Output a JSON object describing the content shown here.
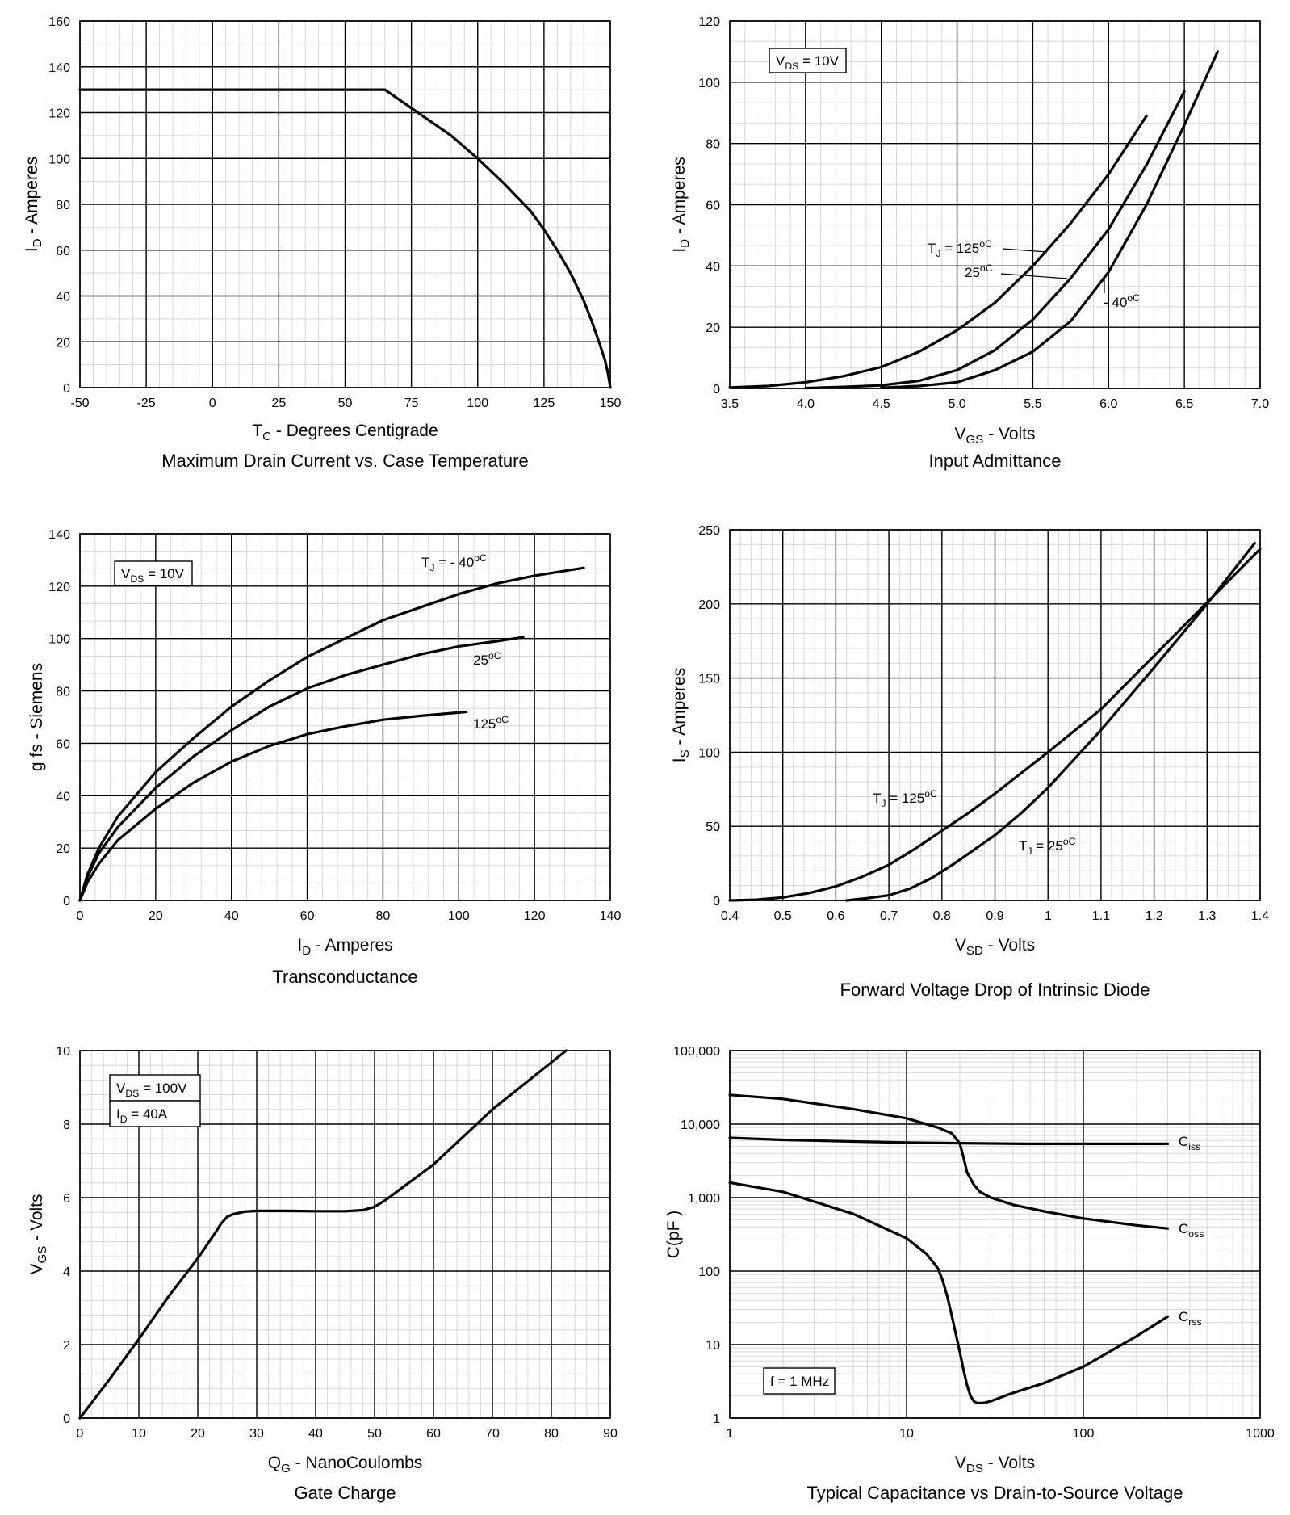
{
  "chart_data": [
    {
      "type": "line",
      "title": "Maximum Drain Current vs. Case Temperature",
      "xlabel": "T_C - Degrees Centigrade",
      "ylabel": "I_D - Amperes",
      "xlim": [
        -50,
        150
      ],
      "ylim": [
        0,
        160
      ],
      "x_ticks": [
        -50,
        -25,
        0,
        25,
        50,
        75,
        100,
        125,
        150
      ],
      "y_ticks": [
        0,
        20,
        40,
        60,
        80,
        100,
        120,
        140,
        160
      ],
      "series": [
        {
          "name": "I_D max",
          "label": "",
          "x": [
            -50,
            65,
            80,
            90,
            100,
            110,
            120,
            125,
            130,
            135,
            140,
            143,
            146,
            148,
            149,
            149.6,
            150
          ],
          "y": [
            130,
            130,
            118,
            110,
            100,
            89,
            77,
            69,
            60,
            50,
            38,
            29,
            19,
            12,
            7,
            3,
            0
          ]
        }
      ],
      "annotations": []
    },
    {
      "type": "line",
      "title": "Input Admittance",
      "xlabel": "V_GS - Volts",
      "ylabel": "I_D - Amperes",
      "xlim": [
        3.5,
        7.0
      ],
      "ylim": [
        0,
        120
      ],
      "x_ticks": [
        "3.5",
        "4.0",
        "4.5",
        "5.0",
        "5.5",
        "6.0",
        "6.5",
        "7.0"
      ],
      "y_ticks": [
        0,
        20,
        40,
        60,
        80,
        100,
        120
      ],
      "series": [
        {
          "name": "TJ=125C",
          "label": "T_J = 125^oC",
          "x": [
            3.5,
            3.75,
            4.0,
            4.25,
            4.5,
            4.75,
            5.0,
            5.25,
            5.5,
            5.75,
            6.0,
            6.25
          ],
          "y": [
            0.3,
            0.8,
            2,
            4,
            7,
            12,
            19,
            28,
            40,
            54,
            70,
            89
          ]
        },
        {
          "name": "TJ=25C",
          "label": "25^oC",
          "x": [
            4.0,
            4.25,
            4.5,
            4.75,
            5.0,
            5.25,
            5.5,
            5.75,
            6.0,
            6.25,
            6.5
          ],
          "y": [
            0.1,
            0.5,
            1,
            2.5,
            6,
            12.5,
            22.5,
            36,
            52,
            73,
            97
          ]
        },
        {
          "name": "TJ=-40C",
          "label": "- 40^oC",
          "x": [
            4.5,
            4.75,
            5.0,
            5.25,
            5.5,
            5.75,
            6.0,
            6.25,
            6.5,
            6.72
          ],
          "y": [
            0.2,
            0.8,
            2,
            6,
            12,
            22,
            38,
            60,
            86,
            110
          ]
        }
      ],
      "annotations": [
        "V_DS = 10V"
      ]
    },
    {
      "type": "line",
      "title": "Transconductance",
      "xlabel": "I_D - Amperes",
      "ylabel": "g fs - Siemens",
      "xlim": [
        0,
        140
      ],
      "ylim": [
        0,
        140
      ],
      "x_ticks": [
        0,
        20,
        40,
        60,
        80,
        100,
        120,
        140
      ],
      "y_ticks": [
        0,
        20,
        40,
        60,
        80,
        100,
        120,
        140
      ],
      "series": [
        {
          "name": "TJ=-40C",
          "label": "T_J = - 40^oC",
          "x": [
            0,
            2,
            5,
            10,
            20,
            30,
            40,
            50,
            60,
            70,
            80,
            90,
            100,
            110,
            120,
            133
          ],
          "y": [
            0,
            10,
            20,
            32,
            49,
            62,
            74,
            84,
            93,
            100,
            107,
            112,
            117,
            121,
            124,
            127
          ]
        },
        {
          "name": "TJ=25C",
          "label": "25^oC",
          "x": [
            0,
            2,
            5,
            10,
            20,
            30,
            40,
            50,
            60,
            70,
            80,
            90,
            100,
            110,
            117
          ],
          "y": [
            0,
            9,
            18,
            28,
            43,
            55,
            65,
            74,
            81,
            86,
            90,
            94,
            97,
            99,
            100.5
          ]
        },
        {
          "name": "TJ=125C",
          "label": "125^oC",
          "x": [
            0,
            2,
            5,
            10,
            20,
            30,
            40,
            50,
            60,
            70,
            80,
            90,
            102
          ],
          "y": [
            0,
            7,
            14,
            23,
            35,
            45,
            53,
            59,
            63.5,
            66.5,
            69,
            70.5,
            72
          ]
        }
      ],
      "annotations": [
        "V_DS = 10V"
      ]
    },
    {
      "type": "line",
      "title": "Forward Voltage Drop of Intrinsic Diode",
      "xlabel": "V_SD - Volts",
      "ylabel": "I_S - Amperes",
      "xlim": [
        0.4,
        1.4
      ],
      "ylim": [
        0,
        250
      ],
      "x_ticks": [
        "0.4",
        "0.5",
        "0.6",
        "0.7",
        "0.8",
        "0.9",
        "1",
        "1.1",
        "1.2",
        "1.3",
        "1.4"
      ],
      "y_ticks": [
        0,
        50,
        100,
        150,
        200,
        250
      ],
      "series": [
        {
          "name": "TJ=125C",
          "label": "T_J = 125^oC",
          "x": [
            0.4,
            0.45,
            0.5,
            0.55,
            0.6,
            0.65,
            0.7,
            0.75,
            0.8,
            0.85,
            0.9,
            0.95,
            1.0,
            1.1,
            1.2,
            1.3,
            1.4
          ],
          "y": [
            0,
            0.5,
            2,
            5,
            9.5,
            16,
            24,
            35,
            47,
            59,
            72,
            86,
            100,
            129,
            165,
            201,
            237
          ]
        },
        {
          "name": "TJ=25C",
          "label": "T_J = 25^oC",
          "x": [
            0.62,
            0.66,
            0.7,
            0.74,
            0.78,
            0.82,
            0.86,
            0.9,
            0.95,
            1.0,
            1.1,
            1.2,
            1.3,
            1.39
          ],
          "y": [
            0,
            1.5,
            3.5,
            8,
            15,
            24,
            34,
            44,
            59,
            76,
            115,
            157,
            200,
            241
          ]
        }
      ],
      "annotations": []
    },
    {
      "type": "line",
      "title": "Gate Charge",
      "xlabel": "Q_G - NanoCoulombs",
      "ylabel": "V_GS - Volts",
      "xlim": [
        0,
        90
      ],
      "ylim": [
        0,
        10
      ],
      "x_ticks": [
        0,
        10,
        20,
        30,
        40,
        50,
        60,
        70,
        80,
        90
      ],
      "y_ticks": [
        0,
        2,
        4,
        6,
        8,
        10
      ],
      "series": [
        {
          "name": "V_GS",
          "label": "",
          "x": [
            0,
            5,
            10,
            15,
            20,
            23,
            24,
            25,
            26,
            28,
            30,
            35,
            40,
            45,
            48,
            50,
            52,
            60,
            70,
            82.5
          ],
          "y": [
            0,
            1.05,
            2.15,
            3.3,
            4.35,
            5.05,
            5.3,
            5.48,
            5.55,
            5.62,
            5.64,
            5.64,
            5.63,
            5.63,
            5.66,
            5.75,
            5.95,
            6.9,
            8.4,
            10
          ]
        }
      ],
      "annotations": [
        "V_DS = 100V",
        "I_D = 40A"
      ]
    },
    {
      "type": "line",
      "title": "Typical Capacitance vs Drain-to-Source Voltage",
      "xlabel": "V_DS - Volts",
      "ylabel": "C(pF )",
      "xscale": "log",
      "yscale": "log",
      "xlim": [
        1,
        1000
      ],
      "ylim": [
        1,
        100000
      ],
      "x_ticks": [
        "1",
        "10",
        "100",
        "1000"
      ],
      "y_ticks": [
        "1",
        "10",
        "100",
        "1,000",
        "10,000",
        "100,000"
      ],
      "series": [
        {
          "name": "Ciss",
          "label": "C_iss",
          "x": [
            1,
            2,
            5,
            10,
            20,
            50,
            100,
            200,
            300
          ],
          "y": [
            6500,
            6100,
            5800,
            5600,
            5500,
            5400,
            5400,
            5400,
            5400
          ]
        },
        {
          "name": "Coss",
          "label": "C_oss",
          "x": [
            1,
            2,
            5,
            10,
            15,
            18,
            20,
            21,
            22,
            24,
            26,
            30,
            40,
            60,
            100,
            200,
            300
          ],
          "y": [
            25000,
            22000,
            16000,
            12000,
            9000,
            7500,
            5500,
            3500,
            2200,
            1500,
            1200,
            1000,
            800,
            650,
            520,
            420,
            380
          ]
        },
        {
          "name": "Crss",
          "label": "C_rss",
          "x": [
            1,
            2,
            5,
            10,
            13,
            15,
            16,
            17,
            18,
            19,
            20,
            21,
            22,
            23,
            24,
            25,
            27,
            30,
            40,
            60,
            100,
            200,
            300
          ],
          "y": [
            1600,
            1200,
            600,
            280,
            170,
            110,
            75,
            45,
            25,
            14,
            8,
            4.5,
            2.8,
            2.0,
            1.7,
            1.6,
            1.6,
            1.7,
            2.2,
            3.0,
            5.0,
            13,
            24
          ]
        }
      ],
      "annotations": [
        "f = 1 MHz"
      ]
    }
  ]
}
